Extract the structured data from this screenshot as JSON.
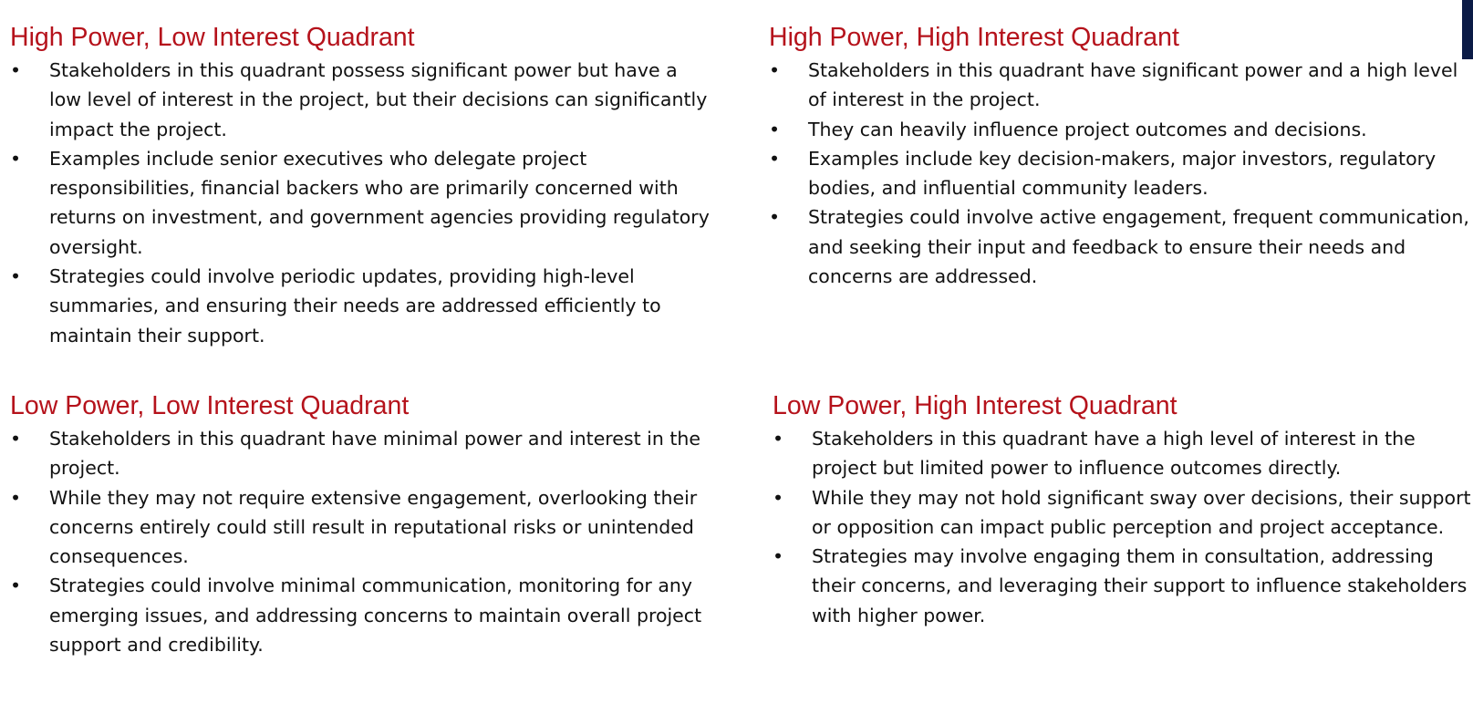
{
  "quadrants": [
    {
      "title": "High Power, Low Interest Quadrant",
      "bullets": [
        "Stakeholders in this quadrant possess significant power but have a low level of interest in the project, but their decisions can significantly impact the project.",
        "Examples include senior executives who delegate project responsibilities, financial backers who are primarily concerned with returns on investment, and government agencies providing regulatory oversight.",
        "Strategies could involve periodic updates, providing high-level summaries, and ensuring their needs are addressed efficiently to maintain their support."
      ]
    },
    {
      "title": "High Power, High Interest Quadrant",
      "bullets": [
        "Stakeholders in this quadrant have significant power and a high level of interest in the project.",
        "They can heavily influence project outcomes and decisions.",
        "Examples include key decision-makers, major investors, regulatory bodies, and influential community leaders.",
        "Strategies could involve active engagement, frequent communication, and seeking their input and feedback to ensure their needs and concerns are addressed."
      ]
    },
    {
      "title": "Low Power, Low Interest Quadrant",
      "bullets": [
        "Stakeholders in this quadrant have minimal power and interest in the project.",
        "While they may not require extensive engagement, overlooking their concerns entirely could still result in reputational risks or unintended consequences.",
        "Strategies could involve minimal communication, monitoring for any emerging issues, and addressing concerns to maintain overall project support and credibility."
      ]
    },
    {
      "title": "Low Power, High Interest Quadrant",
      "bullets": [
        "Stakeholders in this quadrant have a high level of interest in the project but limited power to influence outcomes directly.",
        "While they may not hold significant sway over decisions, their support or opposition can impact public perception and project acceptance.",
        "Strategies may involve engaging them in consultation, addressing their concerns, and leveraging their support to influence stakeholders with higher power."
      ]
    }
  ],
  "bullet_glyph": "•",
  "colors": {
    "heading": "#b5121b",
    "body_text": "#111111",
    "corner_accent": "#0b1b46"
  }
}
